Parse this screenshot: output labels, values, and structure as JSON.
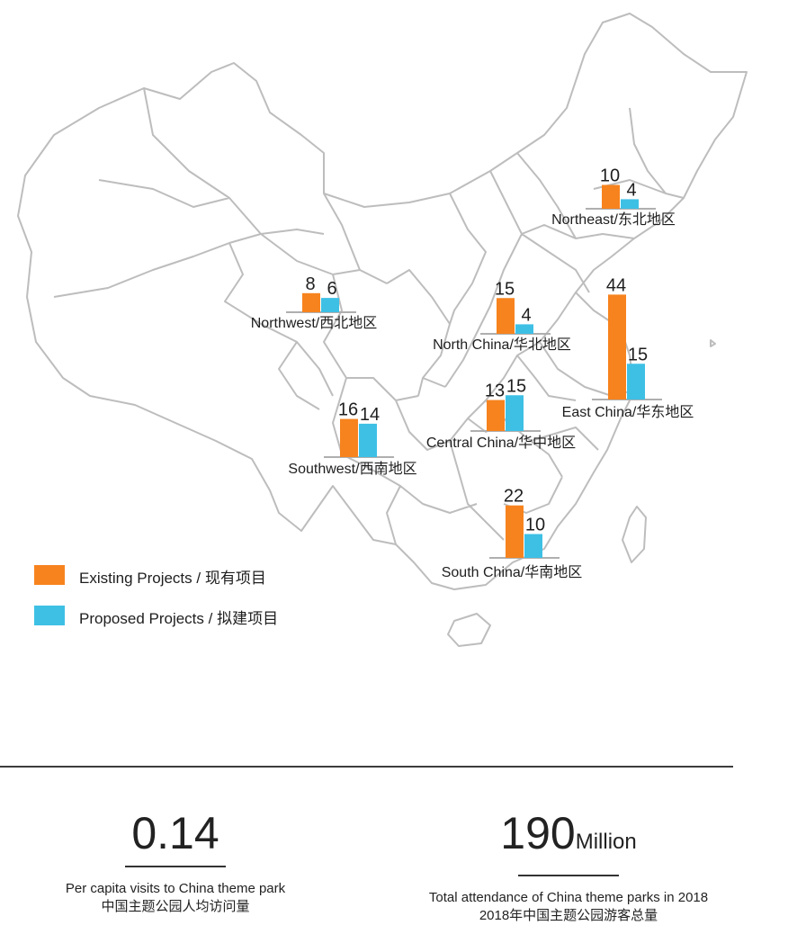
{
  "colors": {
    "existing": "#F7831E",
    "proposed": "#3EC0E5",
    "map_stroke": "#BDBDBD"
  },
  "chart_data": {
    "type": "bar",
    "series": [
      {
        "name": "Existing Projects / 现有项目",
        "values": [
          10,
          8,
          15,
          44,
          16,
          13,
          22
        ]
      },
      {
        "name": "Proposed Projects / 拟建项目",
        "values": [
          4,
          6,
          4,
          15,
          14,
          15,
          10
        ]
      }
    ],
    "categories": [
      "Northeast/东北地区",
      "Northwest/西北地区",
      "North  China/华北地区",
      "East China/华东地区",
      "Southwest/西南地区",
      "Central China/华中地区",
      "South China/华南地区"
    ],
    "legend_position": "bottom-left"
  },
  "stats": [
    {
      "value": "0.14",
      "unit": "",
      "caption_en": "Per capita visits to China theme park",
      "caption_cn": "中国主题公园人均访问量"
    },
    {
      "value": "190",
      "unit": "Million",
      "caption_en": "Total attendance of China theme parks  in 2018",
      "caption_cn": "2018年中国主题公园游客总量"
    }
  ]
}
